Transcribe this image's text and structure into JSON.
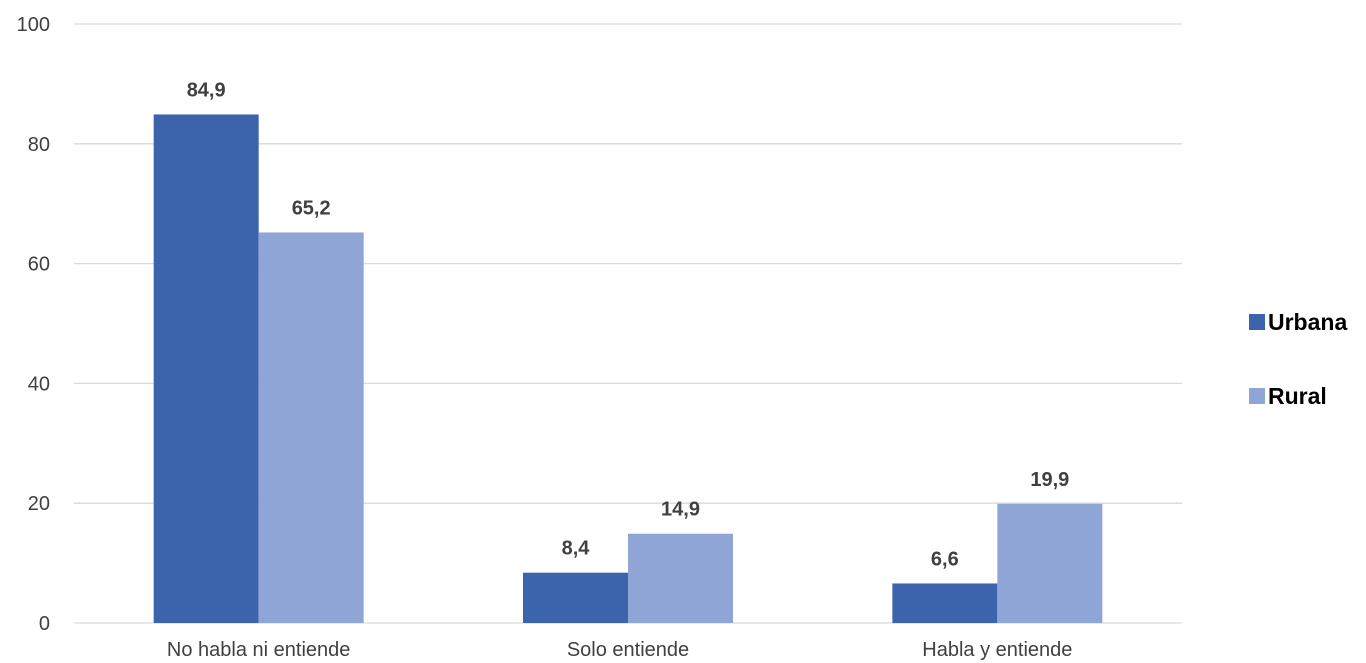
{
  "chart_data": {
    "type": "bar",
    "title": "",
    "xlabel": "",
    "ylabel": "",
    "categories": [
      "No habla ni entiende",
      "Solo entiende",
      "Habla y entiende"
    ],
    "series": [
      {
        "name": "Urbana",
        "values": [
          84.9,
          8.4,
          6.6
        ],
        "labels": [
          "84,9",
          "8,4",
          "6,6"
        ],
        "color": "#3b64ad"
      },
      {
        "name": "Rural",
        "values": [
          65.2,
          14.9,
          19.9
        ],
        "labels": [
          "65,2",
          "14,9",
          "19,9"
        ],
        "color": "#8fa5d6"
      }
    ],
    "ylim": [
      0,
      100
    ],
    "yticks": [
      0,
      20,
      40,
      60,
      80,
      100
    ],
    "grid": true,
    "legend_position": "right"
  }
}
